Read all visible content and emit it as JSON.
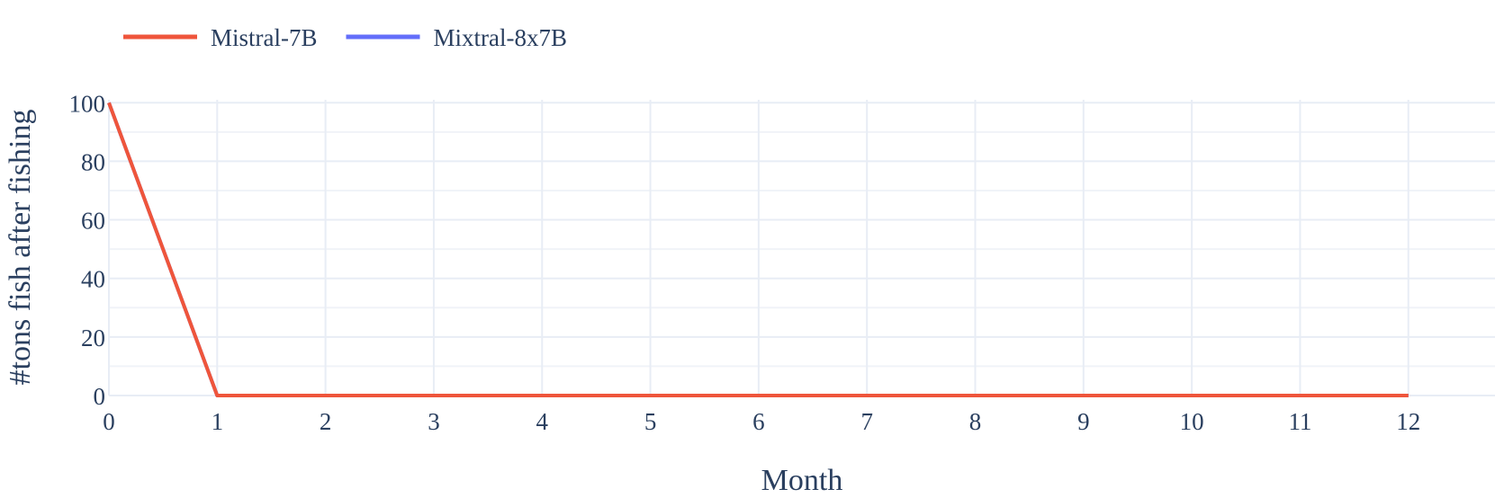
{
  "chart_data": {
    "type": "line",
    "title": "",
    "xlabel": "Month",
    "ylabel": "#tons fish after fishing",
    "xlim": [
      0,
      12.8
    ],
    "ylim": [
      0,
      101
    ],
    "x_ticks": [
      0,
      1,
      2,
      3,
      4,
      5,
      6,
      7,
      8,
      9,
      10,
      11,
      12
    ],
    "y_ticks": [
      0,
      20,
      40,
      60,
      80,
      100
    ],
    "grid": true,
    "legend": "top-left, horizontal",
    "series": [
      {
        "name": "Mistral-7B",
        "color": "#ef553b",
        "x": [
          0,
          1,
          2,
          3,
          4,
          5,
          6,
          7,
          8,
          9,
          10,
          11,
          12
        ],
        "y": [
          100,
          0,
          0,
          0,
          0,
          0,
          0,
          0,
          0,
          0,
          0,
          0,
          0
        ]
      },
      {
        "name": "Mixtral-8x7B",
        "color": "#636efa",
        "x": [
          0,
          1,
          2,
          3,
          4,
          5,
          6,
          7,
          8,
          9,
          10,
          11,
          12
        ],
        "y": [
          100,
          0,
          0,
          0,
          0,
          0,
          0,
          0,
          0,
          0,
          0,
          0,
          0
        ]
      }
    ]
  }
}
